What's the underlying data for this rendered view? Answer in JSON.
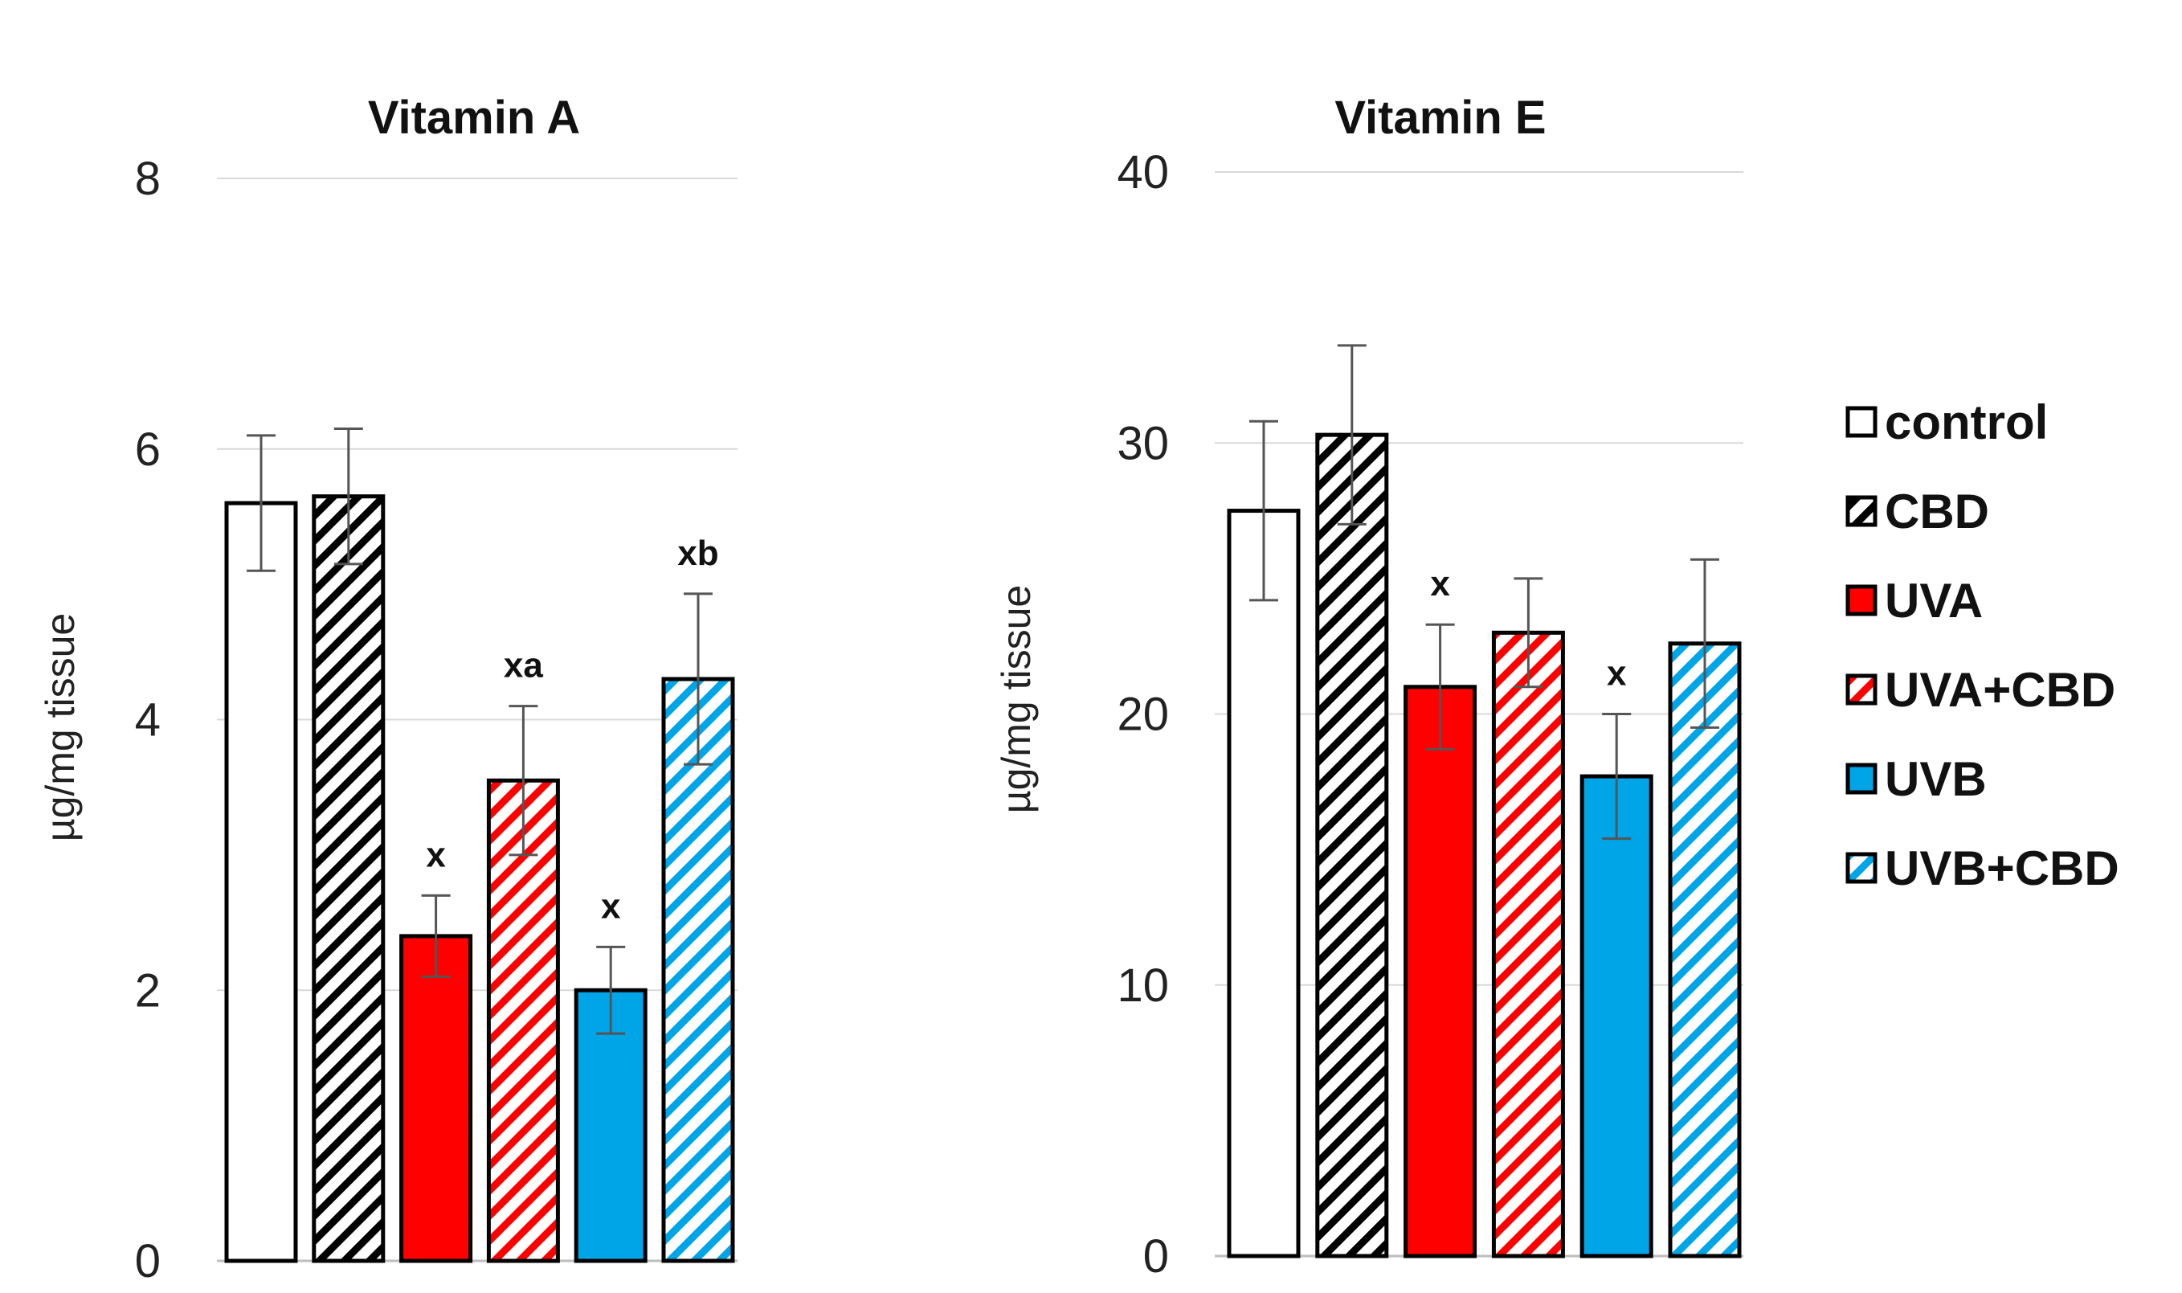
{
  "legend": {
    "position": "right",
    "items": [
      {
        "label": "control",
        "fill": "#ffffff",
        "stripe": null
      },
      {
        "label": "CBD",
        "fill": "#ffffff",
        "stripe": "#000000"
      },
      {
        "label": "UVA",
        "fill": "#ff0000",
        "stripe": null
      },
      {
        "label": "UVA+CBD",
        "fill": "#ffffff",
        "stripe": "#ff0000"
      },
      {
        "label": "UVB",
        "fill": "#00a5e8",
        "stripe": null
      },
      {
        "label": "UVB+CBD",
        "fill": "#ffffff",
        "stripe": "#00a5e8"
      }
    ]
  },
  "chart_data": [
    {
      "type": "bar",
      "title": "Vitamin A",
      "xlabel": "",
      "ylabel": "µg/mg tissue",
      "ylim": [
        0,
        8
      ],
      "yticks": [
        0,
        2,
        4,
        6,
        8
      ],
      "grid": true,
      "categories": [
        "control",
        "CBD",
        "UVA",
        "UVA+CBD",
        "UVB",
        "UVB+CBD"
      ],
      "values": [
        5.6,
        5.65,
        2.4,
        3.55,
        2.0,
        4.3
      ],
      "errors": [
        0.5,
        0.5,
        0.3,
        0.55,
        0.32,
        0.63
      ],
      "annotations": [
        "",
        "",
        "x",
        "xa",
        "x",
        "xb"
      ]
    },
    {
      "type": "bar",
      "title": "Vitamin E",
      "xlabel": "",
      "ylabel": "µg/mg tissue",
      "ylim": [
        0,
        40
      ],
      "yticks": [
        0,
        10,
        20,
        30,
        40
      ],
      "grid": true,
      "categories": [
        "control",
        "CBD",
        "UVA",
        "UVA+CBD",
        "UVB",
        "UVB+CBD"
      ],
      "values": [
        27.5,
        30.3,
        21.0,
        23.0,
        17.7,
        22.6
      ],
      "errors": [
        3.3,
        3.3,
        2.3,
        2.0,
        2.3,
        3.1
      ],
      "annotations": [
        "",
        "",
        "x",
        "",
        "x",
        ""
      ]
    }
  ]
}
